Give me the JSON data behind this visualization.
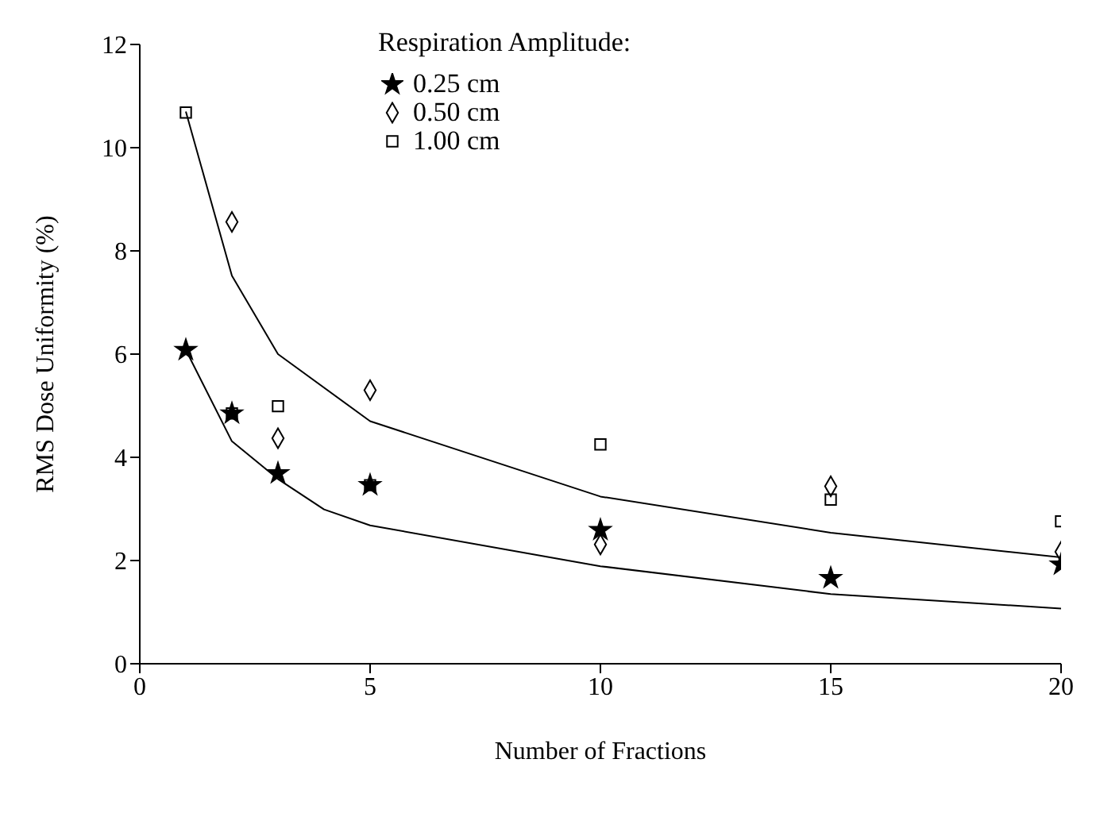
{
  "chart_data": {
    "type": "scatter",
    "xlabel": "Number of Fractions",
    "ylabel": "RMS Dose Uniformity (%)",
    "legend_title": "Respiration Amplitude:",
    "legend": "top",
    "grid": false,
    "xlim": [
      0,
      20
    ],
    "xticks": [
      0,
      5,
      10,
      15,
      20
    ],
    "ylim": [
      0,
      12
    ],
    "yticks": [
      0,
      2,
      4,
      6,
      8,
      10,
      12
    ],
    "series": [
      {
        "name": "0.25 cm",
        "color": "#000000",
        "marker": "star",
        "x": [
          1,
          2,
          3,
          5,
          10,
          15,
          20
        ],
        "values": [
          6.08,
          4.85,
          3.69,
          3.46,
          2.59,
          1.66,
          1.92
        ]
      },
      {
        "name": "0.50 cm",
        "color": "#000000",
        "marker": "diamond",
        "x": [
          2,
          3,
          5,
          10,
          15,
          20
        ],
        "values": [
          8.56,
          4.37,
          5.3,
          2.31,
          3.44,
          2.17
        ]
      },
      {
        "name": "1.00 cm",
        "color": "#000000",
        "marker": "square",
        "x": [
          1,
          2,
          3,
          5,
          10,
          15,
          20
        ],
        "values": [
          10.68,
          4.85,
          4.99,
          3.46,
          4.25,
          3.18,
          2.76
        ]
      },
      {
        "type": "line",
        "color": "#000000",
        "marker": "none",
        "line_style": "solid",
        "x": [
          1,
          2,
          3,
          5,
          10,
          15,
          20
        ],
        "values": [
          10.7,
          7.52,
          6.0,
          4.7,
          3.24,
          2.54,
          2.06
        ]
      },
      {
        "type": "line",
        "color": "#000000",
        "marker": "none",
        "line_style": "solid",
        "x": [
          1,
          2,
          3,
          4,
          5,
          10,
          15,
          20
        ],
        "values": [
          6.08,
          4.31,
          3.58,
          2.99,
          2.68,
          1.89,
          1.35,
          1.07
        ]
      }
    ]
  }
}
